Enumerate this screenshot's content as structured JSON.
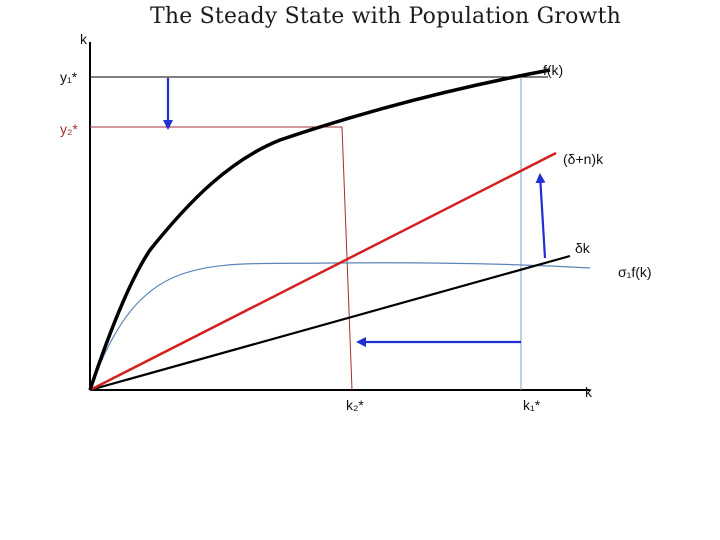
{
  "title": "The Steady State with Population Growth",
  "labels": {
    "y_axis": "k",
    "x_axis": "k",
    "y1": "y₁*",
    "y2": "y₂*",
    "f": "f(k)",
    "dn": "(δ+n)k",
    "dk": "δk",
    "sf": "σ₁f(k)",
    "k1": "k₁*",
    "k2": "k₂*"
  },
  "colors": {
    "production_curve": "#000000",
    "depreciation_line": "#000000",
    "depreciation_population_line": "#d42020",
    "savings_curve": "#5b86b8",
    "guide_red": "#a03030",
    "guide_blue": "#7a9cc0",
    "arrows": "#1f2fd0"
  }
}
